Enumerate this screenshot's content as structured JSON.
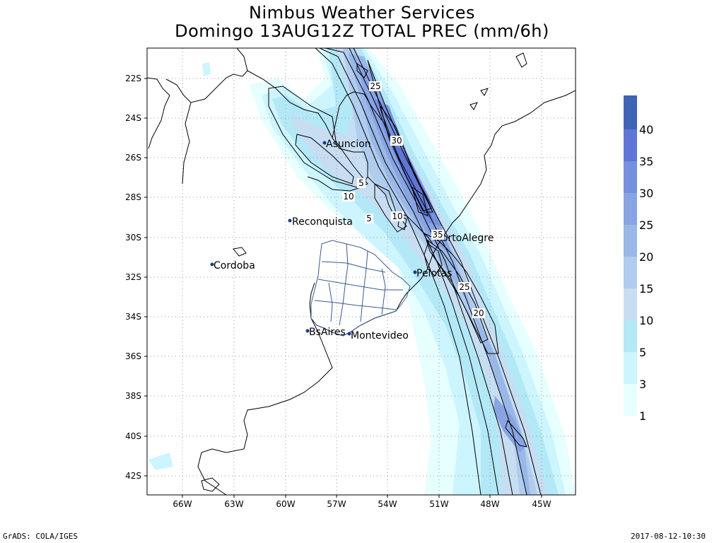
{
  "title_line1": "Nimbus Weather Services",
  "title_line2": "Domingo 13AUG12Z TOTAL PREC (mm/6h)",
  "footer_left": "GrADS: COLA/IGES",
  "footer_right": "2017-08-12-10:30",
  "lat_labels": [
    "22S",
    "24S",
    "26S",
    "28S",
    "30S",
    "32S",
    "34S",
    "36S",
    "38S",
    "40S",
    "42S"
  ],
  "lon_labels": [
    "66W",
    "63W",
    "60W",
    "57W",
    "54W",
    "51W",
    "48W",
    "45W"
  ],
  "cities": [
    {
      "name": "Asuncion"
    },
    {
      "name": "Reconquista"
    },
    {
      "name": "Cordoba"
    },
    {
      "name": "PortoAlegre"
    },
    {
      "name": "Pelotas"
    },
    {
      "name": "BsAires"
    },
    {
      "name": "Montevideo"
    }
  ],
  "contour_labels": [
    "25",
    "30",
    "5",
    "10",
    "5",
    "10",
    "35",
    "25",
    "20"
  ],
  "colorbar": {
    "levels": [
      "1",
      "3",
      "5",
      "10",
      "15",
      "20",
      "25",
      "30",
      "35",
      "40"
    ],
    "colors": [
      "#e6ffff",
      "#ccf5ff",
      "#b3e8f7",
      "#c7ddf2",
      "#b0ccee",
      "#99b8e8",
      "#88a4e3",
      "#7590de",
      "#5f76d6",
      "#3f64b5"
    ]
  }
}
